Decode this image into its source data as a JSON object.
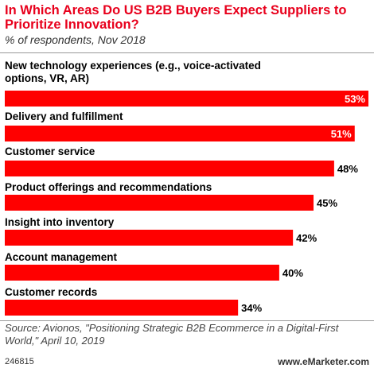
{
  "header": {
    "title": "In Which Areas Do US B2B Buyers Expect Suppliers to Prioritize Innovation?",
    "subtitle": "% of respondents, Nov 2018"
  },
  "footer": {
    "source": "Source: Avionos, \"Positioning Strategic B2B Ecommerce in a Digital-First World,\" April 10, 2019",
    "chart_id": "246815",
    "brand": "www.eMarketer.com"
  },
  "colors": {
    "bar": "#ff0000",
    "title": "#e8001c",
    "label_inside": "#ffffff",
    "label_outside": "#000000"
  },
  "chart_data": {
    "type": "bar",
    "orientation": "horizontal",
    "categories": [
      "New technology experiences (e.g., voice-activated options, VR, AR)",
      "Delivery and fulfillment",
      "Customer service",
      "Product offerings and recommendations",
      "Insight into inventory",
      "Account management",
      "Customer records"
    ],
    "values": [
      53,
      51,
      48,
      45,
      42,
      40,
      34
    ],
    "data_labels": [
      "53%",
      "51%",
      "48%",
      "45%",
      "42%",
      "40%",
      "34%"
    ],
    "xlim": [
      0,
      53
    ],
    "unit": "%",
    "grid": false,
    "legend": "none"
  }
}
